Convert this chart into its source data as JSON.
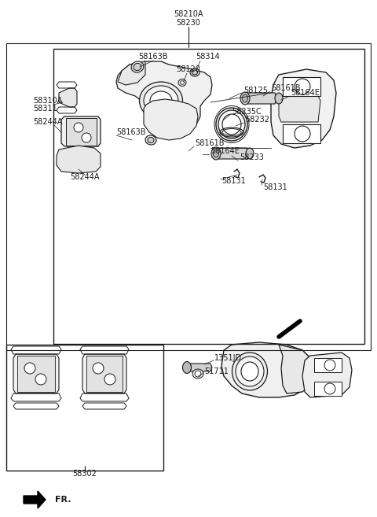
{
  "bg_color": "#ffffff",
  "line_color": "#1a1a1a",
  "fig_width": 4.8,
  "fig_height": 6.57,
  "dpi": 100,
  "title1": "58210A",
  "title2": "58230",
  "label_58302": "58302",
  "label_fr": "FR.",
  "fs": 7.0
}
